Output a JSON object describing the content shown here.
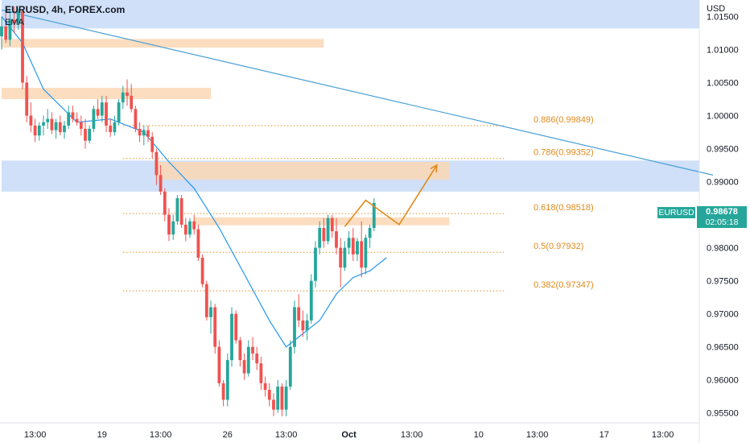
{
  "header": {
    "title": "EURUSD, 4h, FOREX.com",
    "indicator": "EMA"
  },
  "axis": {
    "currency": "USD"
  },
  "price_tag": {
    "symbol": "EURUSD",
    "price": "0.98678",
    "countdown": "02:05:18"
  },
  "colors": {
    "up": "#26a69a",
    "down": "#ef5350",
    "ema": "#2196f3",
    "trend": "#4a9fd4",
    "blue_zone": "#cfe0f8",
    "orange_zone": "#fbd7b5",
    "fib": "#e08a1c",
    "projection": "#e08a1c"
  },
  "chart_data": {
    "type": "candlestick",
    "title": "EURUSD, 4h, FOREX.com",
    "ylim": [
      0.9535,
      1.0175
    ],
    "y_ticks": [
      "1.01500",
      "1.01000",
      "1.00500",
      "1.00000",
      "0.99500",
      "0.99000",
      "0.98000",
      "0.97500",
      "0.97000",
      "0.96500",
      "0.96000",
      "0.95500"
    ],
    "y_tick_values": [
      1.015,
      1.01,
      1.005,
      1.0,
      0.995,
      0.99,
      0.98,
      0.975,
      0.97,
      0.965,
      0.96,
      0.955
    ],
    "x_ticks": [
      {
        "label": "13:00",
        "bar": 8,
        "bold": false
      },
      {
        "label": "19",
        "bar": 24,
        "bold": false
      },
      {
        "label": "13:00",
        "bar": 38,
        "bold": false
      },
      {
        "label": "26",
        "bar": 54,
        "bold": false
      },
      {
        "label": "13:00",
        "bar": 68,
        "bold": false
      },
      {
        "label": "Oct",
        "bar": 83,
        "bold": true
      },
      {
        "label": "13:00",
        "bar": 98,
        "bold": false
      },
      {
        "label": "10",
        "bar": 114,
        "bold": false
      },
      {
        "label": "13:00",
        "bar": 128,
        "bold": false
      },
      {
        "label": "17",
        "bar": 144,
        "bold": false
      },
      {
        "label": "13:00",
        "bar": 158,
        "bold": false
      }
    ],
    "total_bars": 170,
    "candles": [
      [
        1.012,
        1.015,
        1.01,
        1.0135
      ],
      [
        1.0135,
        1.0155,
        1.011,
        1.0115
      ],
      [
        1.0115,
        1.016,
        1.0105,
        1.0145
      ],
      [
        1.0145,
        1.0165,
        1.0125,
        1.014
      ],
      [
        1.014,
        1.0162,
        1.013,
        1.0158
      ],
      [
        1.0158,
        1.016,
        1.004,
        1.005
      ],
      [
        1.005,
        1.006,
        0.999,
        1.0
      ],
      [
        1.0,
        1.002,
        0.9975,
        0.9985
      ],
      [
        0.9985,
        0.9995,
        0.996,
        0.997
      ],
      [
        0.997,
        0.999,
        0.9962,
        0.9985
      ],
      [
        0.9985,
        1.0,
        0.997,
        0.999
      ],
      [
        0.999,
        1.001,
        0.998,
        0.9995
      ],
      [
        0.9995,
        1.0005,
        0.9972,
        0.9978
      ],
      [
        0.9978,
        0.9995,
        0.9965,
        0.999
      ],
      [
        0.999,
        1.0,
        0.997,
        0.9975
      ],
      [
        0.9975,
        0.9992,
        0.9965,
        0.9985
      ],
      [
        0.9985,
        1.0015,
        0.998,
        1.0005
      ],
      [
        1.0005,
        1.0015,
        0.999,
        0.9995
      ],
      [
        0.9995,
        1.0005,
        0.9985,
        0.999
      ],
      [
        0.999,
        1.0,
        0.997,
        0.998
      ],
      [
        0.998,
        0.9995,
        0.995,
        0.9962
      ],
      [
        0.9962,
        0.9985,
        0.9958,
        0.998
      ],
      [
        0.998,
        1.0015,
        0.9975,
        1.001
      ],
      [
        1.001,
        1.0025,
        0.9995,
        1.0
      ],
      [
        1.0,
        1.003,
        0.999,
        1.002
      ],
      [
        1.002,
        1.003,
        0.9975,
        0.9985
      ],
      [
        0.9985,
        0.9995,
        0.9968,
        0.9975
      ],
      [
        0.9975,
        1.0,
        0.997,
        0.999
      ],
      [
        0.999,
        1.0025,
        0.9985,
        1.002
      ],
      [
        1.002,
        1.0045,
        1.001,
        1.0035
      ],
      [
        1.0035,
        1.0055,
        1.0015,
        1.003
      ],
      [
        1.003,
        1.0048,
        1.0005,
        1.001
      ],
      [
        1.001,
        1.0015,
        0.9975,
        0.998
      ],
      [
        0.998,
        0.999,
        0.996,
        0.997
      ],
      [
        0.997,
        0.9985,
        0.9955,
        0.9978
      ],
      [
        0.9978,
        0.9985,
        0.996,
        0.9968
      ],
      [
        0.9968,
        0.9975,
        0.9935,
        0.9945
      ],
      [
        0.9945,
        0.995,
        0.9895,
        0.991
      ],
      [
        0.991,
        0.9925,
        0.988,
        0.9885
      ],
      [
        0.9885,
        0.989,
        0.984,
        0.985
      ],
      [
        0.985,
        0.986,
        0.981,
        0.982
      ],
      [
        0.982,
        0.985,
        0.9812,
        0.984
      ],
      [
        0.984,
        0.988,
        0.9835,
        0.9875
      ],
      [
        0.9875,
        0.988,
        0.983,
        0.9835
      ],
      [
        0.9835,
        0.9845,
        0.981,
        0.982
      ],
      [
        0.982,
        0.9845,
        0.9815,
        0.984
      ],
      [
        0.984,
        0.985,
        0.982,
        0.9828
      ],
      [
        0.9828,
        0.9835,
        0.978,
        0.9785
      ],
      [
        0.9785,
        0.979,
        0.974,
        0.9745
      ],
      [
        0.9745,
        0.975,
        0.969,
        0.9695
      ],
      [
        0.9695,
        0.972,
        0.967,
        0.971
      ],
      [
        0.971,
        0.9715,
        0.964,
        0.965
      ],
      [
        0.965,
        0.966,
        0.959,
        0.9595
      ],
      [
        0.9595,
        0.96,
        0.956,
        0.957
      ],
      [
        0.957,
        0.964,
        0.956,
        0.963
      ],
      [
        0.963,
        0.971,
        0.962,
        0.97
      ],
      [
        0.97,
        0.9705,
        0.9655,
        0.966
      ],
      [
        0.966,
        0.9665,
        0.962,
        0.963
      ],
      [
        0.963,
        0.964,
        0.96,
        0.961
      ],
      [
        0.961,
        0.966,
        0.9605,
        0.965
      ],
      [
        0.965,
        0.9665,
        0.963,
        0.964
      ],
      [
        0.964,
        0.965,
        0.9615,
        0.9625
      ],
      [
        0.9625,
        0.9635,
        0.9585,
        0.9595
      ],
      [
        0.9595,
        0.9605,
        0.9575,
        0.9585
      ],
      [
        0.9585,
        0.9595,
        0.956,
        0.957
      ],
      [
        0.957,
        0.958,
        0.9545,
        0.9555
      ],
      [
        0.9555,
        0.96,
        0.955,
        0.959
      ],
      [
        0.959,
        0.9595,
        0.9545,
        0.9555
      ],
      [
        0.9555,
        0.96,
        0.9545,
        0.959
      ],
      [
        0.959,
        0.966,
        0.9585,
        0.965
      ],
      [
        0.965,
        0.972,
        0.964,
        0.971
      ],
      [
        0.971,
        0.973,
        0.968,
        0.969
      ],
      [
        0.969,
        0.9705,
        0.9665,
        0.9675
      ],
      [
        0.9675,
        0.97,
        0.966,
        0.969
      ],
      [
        0.969,
        0.976,
        0.9685,
        0.975
      ],
      [
        0.975,
        0.981,
        0.974,
        0.98
      ],
      [
        0.98,
        0.984,
        0.979,
        0.983
      ],
      [
        0.983,
        0.9845,
        0.98,
        0.981
      ],
      [
        0.981,
        0.985,
        0.9805,
        0.9845
      ],
      [
        0.9845,
        0.985,
        0.9815,
        0.9825
      ],
      [
        0.9825,
        0.9845,
        0.979,
        0.98
      ],
      [
        0.98,
        0.9815,
        0.974,
        0.977
      ],
      [
        0.977,
        0.981,
        0.9765,
        0.98
      ],
      [
        0.98,
        0.9825,
        0.979,
        0.9815
      ],
      [
        0.9815,
        0.983,
        0.978,
        0.979
      ],
      [
        0.979,
        0.9815,
        0.978,
        0.981
      ],
      [
        0.981,
        0.984,
        0.9755,
        0.977
      ],
      [
        0.977,
        0.982,
        0.976,
        0.9815
      ],
      [
        0.9815,
        0.9835,
        0.98,
        0.983
      ],
      [
        0.983,
        0.9875,
        0.9825,
        0.9868
      ]
    ],
    "ema": [
      [
        0,
        1.015
      ],
      [
        5,
        1.011
      ],
      [
        10,
        1.004
      ],
      [
        18,
        0.999
      ],
      [
        26,
        0.9995
      ],
      [
        34,
        0.9975
      ],
      [
        40,
        0.993
      ],
      [
        46,
        0.989
      ],
      [
        52,
        0.983
      ],
      [
        58,
        0.976
      ],
      [
        64,
        0.969
      ],
      [
        68,
        0.965
      ],
      [
        71,
        0.9665
      ],
      [
        76,
        0.969
      ],
      [
        80,
        0.973
      ],
      [
        84,
        0.9755
      ],
      [
        88,
        0.9765
      ],
      [
        92,
        0.9785
      ]
    ],
    "trendline": {
      "from": [
        0,
        1.016
      ],
      "to": [
        170,
        0.991
      ]
    },
    "zones": [
      {
        "color": "blue",
        "y1": 1.0175,
        "y2": 1.0132,
        "x1": 0,
        "x2": 170
      },
      {
        "color": "blue",
        "y1": 0.9932,
        "y2": 0.9885,
        "x1": 0,
        "x2": 170
      },
      {
        "color": "orange",
        "y1": 1.0116,
        "y2": 1.0103,
        "x1": 0,
        "x2": 77
      },
      {
        "color": "orange",
        "y1": 1.0042,
        "y2": 1.0025,
        "x1": 0,
        "x2": 50
      },
      {
        "color": "orange",
        "y1": 0.993,
        "y2": 0.9903,
        "x1": 37,
        "x2": 107
      },
      {
        "color": "orange",
        "y1": 0.9846,
        "y2": 0.9834,
        "x1": 46,
        "x2": 107
      }
    ],
    "fib_levels": [
      {
        "label": "0.886(0.99849)",
        "value": 0.99849
      },
      {
        "label": "0.786(0.99352)",
        "value": 0.99352
      },
      {
        "label": "0.618(0.98518)",
        "value": 0.98518
      },
      {
        "label": "0.5(0.97932)",
        "value": 0.97932
      },
      {
        "label": "0.382(0.97347)",
        "value": 0.97347
      }
    ],
    "fib_x_range": [
      29,
      120
    ],
    "projection": [
      [
        82,
        0.9832
      ],
      [
        87,
        0.9872
      ],
      [
        95,
        0.9835
      ],
      [
        104,
        0.9925
      ]
    ]
  }
}
